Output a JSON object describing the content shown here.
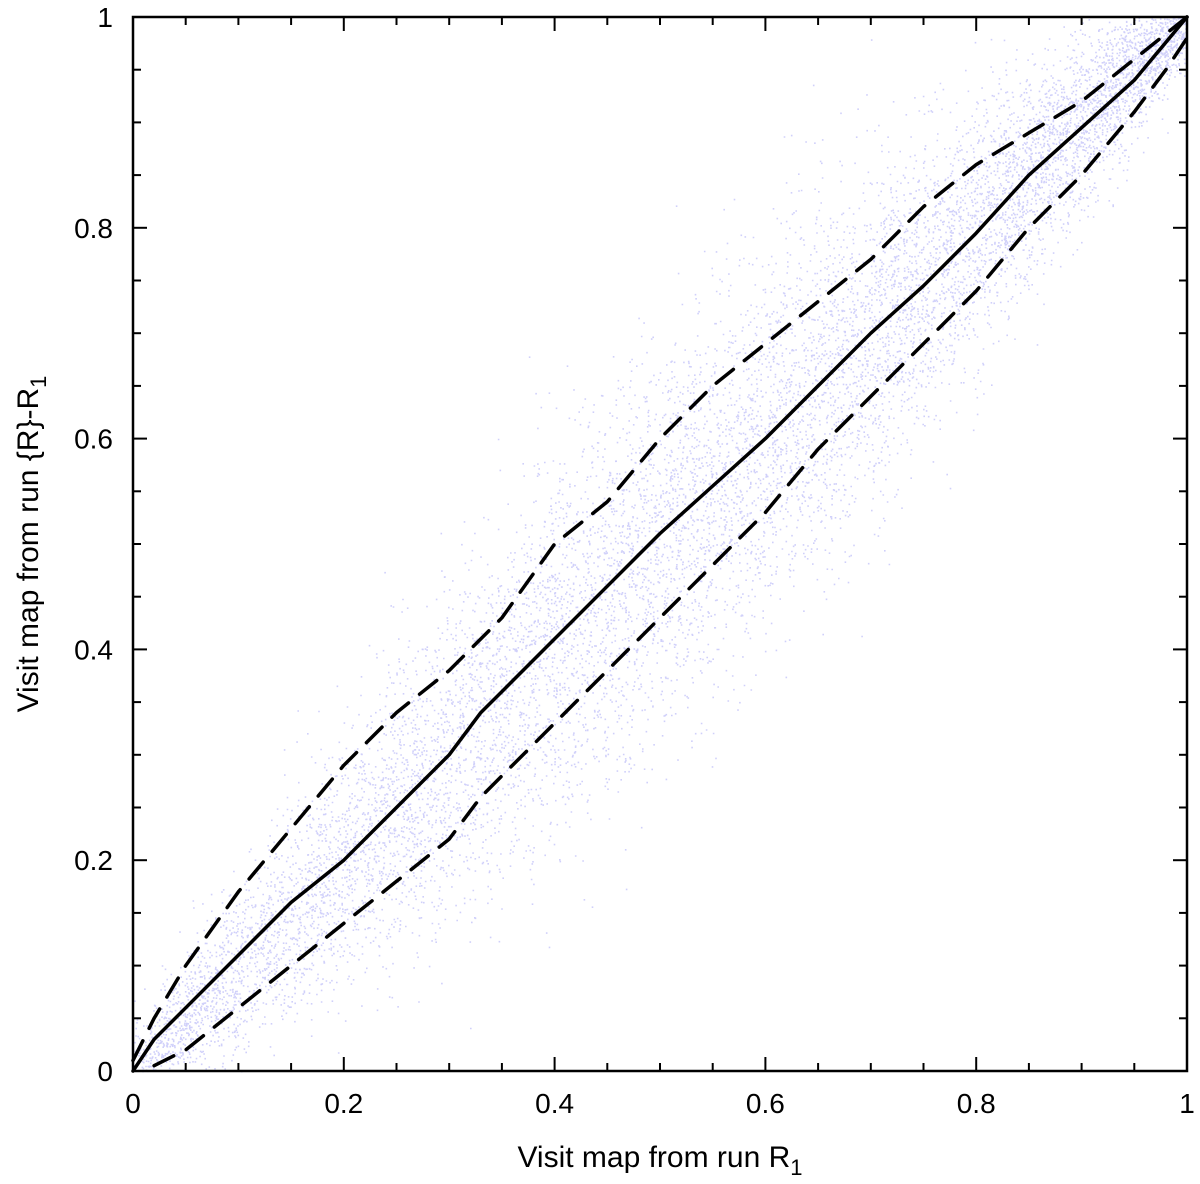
{
  "chart_data": {
    "type": "scatter",
    "title": "",
    "xlabel": {
      "text": "Visit map from run R",
      "sub": "1"
    },
    "ylabel": {
      "text": "Visit map from run {R}-R",
      "sub": "1"
    },
    "xlim": [
      0,
      1
    ],
    "ylim": [
      0,
      1
    ],
    "x_ticks": [
      "0",
      "0.2",
      "0.4",
      "0.6",
      "0.8",
      "1"
    ],
    "y_ticks": [
      "0",
      "0.2",
      "0.4",
      "0.6",
      "0.8",
      "1"
    ],
    "x_tick_values": [
      0,
      0.2,
      0.4,
      0.6,
      0.8,
      1
    ],
    "y_tick_values": [
      0,
      0.2,
      0.4,
      0.6,
      0.8,
      1
    ],
    "minor_tick_step": 0.05,
    "grid": false,
    "legend": "none",
    "colors": {
      "points": "#2a2ae8",
      "lines": "#000000"
    },
    "scatter": {
      "distribution": "dense cloud along the diagonal y = x, spread widening toward mid-range",
      "count_estimate": 60000
    },
    "series": [
      {
        "style": "solid",
        "x": [
          0,
          0.02,
          0.05,
          0.1,
          0.15,
          0.2,
          0.25,
          0.3,
          0.33,
          0.35,
          0.4,
          0.45,
          0.5,
          0.55,
          0.6,
          0.65,
          0.7,
          0.75,
          0.8,
          0.85,
          0.9,
          0.95,
          1.0
        ],
        "y": [
          0,
          0.03,
          0.06,
          0.11,
          0.16,
          0.2,
          0.25,
          0.3,
          0.34,
          0.36,
          0.41,
          0.46,
          0.51,
          0.555,
          0.6,
          0.65,
          0.7,
          0.745,
          0.795,
          0.85,
          0.895,
          0.94,
          1.0
        ]
      },
      {
        "style": "dashed",
        "x": [
          0,
          0.02,
          0.05,
          0.1,
          0.15,
          0.2,
          0.25,
          0.3,
          0.35,
          0.4,
          0.45,
          0.5,
          0.55,
          0.6,
          0.65,
          0.7,
          0.75,
          0.8,
          0.85,
          0.9,
          0.95,
          1.0
        ],
        "y": [
          0.01,
          0.05,
          0.1,
          0.17,
          0.23,
          0.29,
          0.34,
          0.38,
          0.43,
          0.5,
          0.54,
          0.6,
          0.65,
          0.69,
          0.73,
          0.77,
          0.82,
          0.86,
          0.89,
          0.92,
          0.96,
          1.0
        ]
      },
      {
        "style": "dashed",
        "x": [
          0.02,
          0.05,
          0.1,
          0.15,
          0.2,
          0.25,
          0.3,
          0.33,
          0.35,
          0.4,
          0.45,
          0.5,
          0.55,
          0.6,
          0.65,
          0.7,
          0.75,
          0.8,
          0.85,
          0.9,
          0.95,
          0.98,
          1.0
        ],
        "y": [
          0.005,
          0.02,
          0.06,
          0.1,
          0.14,
          0.18,
          0.22,
          0.26,
          0.28,
          0.33,
          0.38,
          0.43,
          0.48,
          0.53,
          0.59,
          0.64,
          0.69,
          0.74,
          0.8,
          0.85,
          0.91,
          0.95,
          0.98
        ]
      }
    ]
  }
}
